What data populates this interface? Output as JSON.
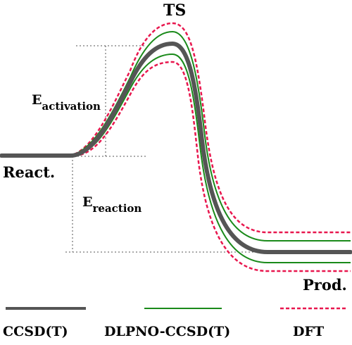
{
  "labels": {
    "ts": "TS",
    "reactant": "React.",
    "product": "Prod.",
    "e_activation_main": "E",
    "e_activation_sub": "activation",
    "e_reaction_main": "E",
    "e_reaction_sub": "reaction"
  },
  "legend": [
    {
      "name": "CCSD(T)",
      "style": "thick-solid",
      "color": "#555555"
    },
    {
      "name": "DLPNO-CCSD(T)",
      "style": "thin-solid",
      "color": "#1a8a1a"
    },
    {
      "name": "DFT",
      "style": "dashed",
      "color": "#e8174e"
    }
  ],
  "colors": {
    "ccsdt": "#555555",
    "dlpno": "#1a8a1a",
    "dft": "#e8174e",
    "guide": "#555555"
  }
}
